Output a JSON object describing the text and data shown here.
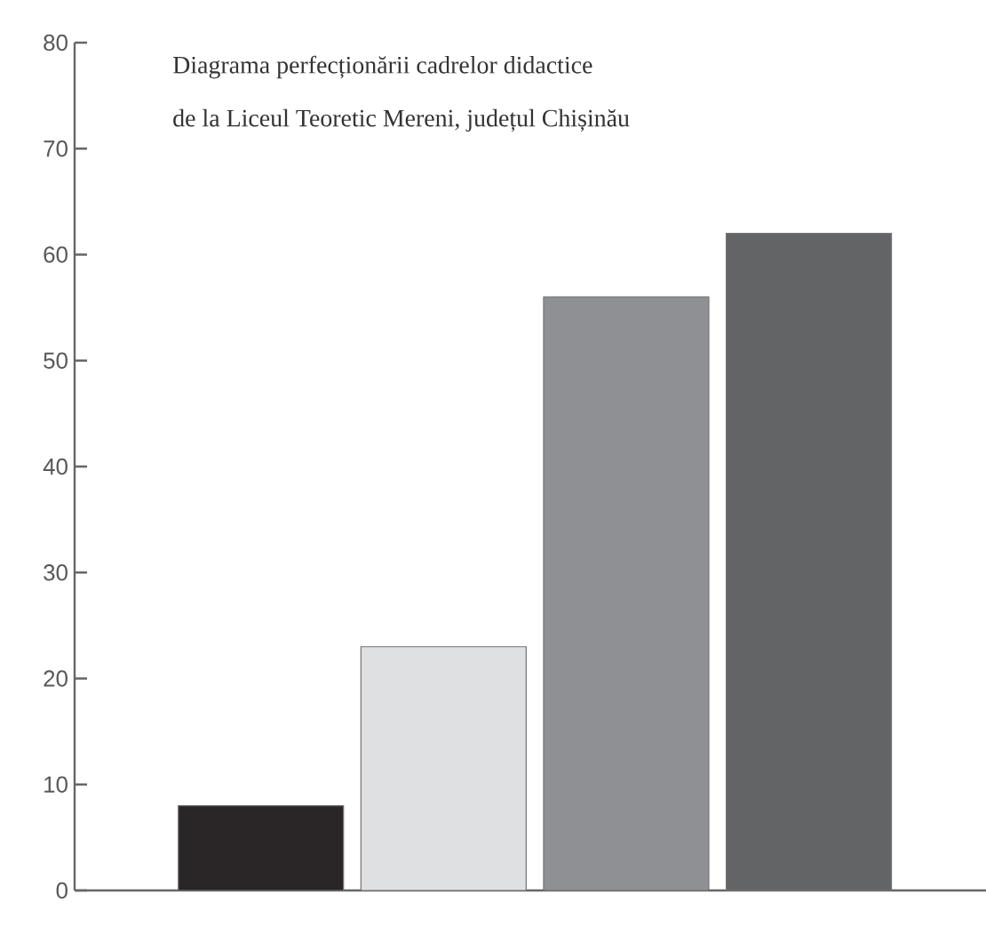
{
  "chart_data": {
    "type": "bar",
    "title": "Diagrama perfecționării cadrelor didactice",
    "subtitle": "de la Liceul Teoretic Mereni, județul Chișinău",
    "categories": [
      null,
      null,
      null,
      null
    ],
    "values": [
      8,
      23,
      56,
      62
    ],
    "colors": [
      "#2a2627",
      "#dfe0e2",
      "#8e9093",
      "#626466"
    ],
    "ylim": [
      0,
      80
    ],
    "yticks": [
      0,
      10,
      20,
      30,
      40,
      50,
      60,
      70,
      80
    ]
  }
}
